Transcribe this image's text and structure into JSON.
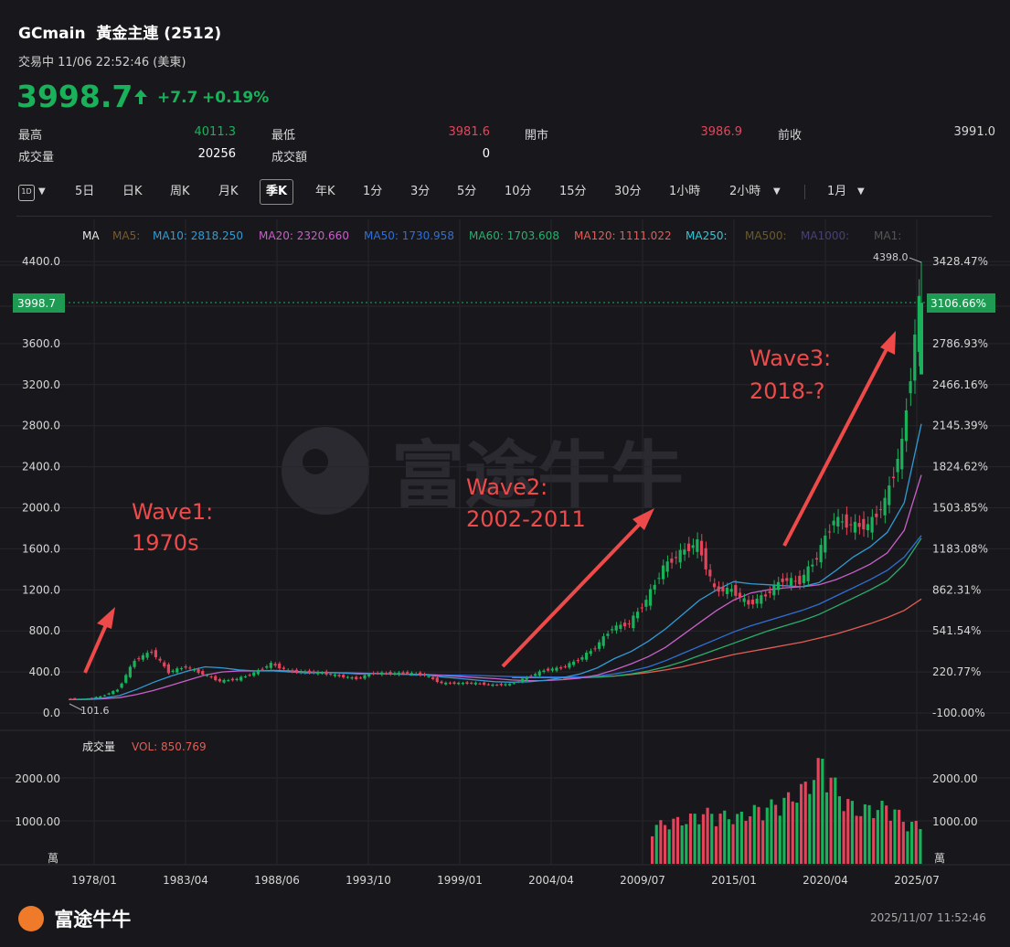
{
  "header": {
    "symbol": "GCmain",
    "name": "黃金主連 (2512)",
    "status": "交易中 11/06 22:52:46 (美東)",
    "price": "3998.7",
    "change": "+7.7",
    "change_pct": "+0.19%",
    "up_color": "#19b25a",
    "down_color": "#e2455b"
  },
  "stats": [
    {
      "label": "最高",
      "value": "4011.3",
      "color": "#19b25a"
    },
    {
      "label": "最低",
      "value": "3981.6",
      "color": "#e2455b"
    },
    {
      "label": "開市",
      "value": "3986.9",
      "color": "#e2455b"
    },
    {
      "label": "前收",
      "value": "3991.0",
      "color": "#d6d6d6"
    },
    {
      "label": "成交量",
      "value": "20256",
      "color": "#ffffff"
    },
    {
      "label": "成交額",
      "value": "0",
      "color": "#ffffff"
    }
  ],
  "toolbar": {
    "period_icon": "1D",
    "items": [
      "5日",
      "日K",
      "周K",
      "月K",
      "季K",
      "年K",
      "1分",
      "3分",
      "5分",
      "10分",
      "15分",
      "30分",
      "1小時",
      "2小時",
      "1月"
    ],
    "active": "季K"
  },
  "legend": {
    "ma_label": "MA",
    "items": [
      {
        "text": "MA5:",
        "color": "#7a5a2a"
      },
      {
        "text": "MA10: 2818.250",
        "color": "#2f9bd6"
      },
      {
        "text": "MA20: 2320.660",
        "color": "#c95fc9"
      },
      {
        "text": "MA50: 1730.958",
        "color": "#2f6fd6"
      },
      {
        "text": "MA60: 1703.608",
        "color": "#27b06a"
      },
      {
        "text": "MA120: 1111.022",
        "color": "#e35d55"
      },
      {
        "text": "MA250:",
        "color": "#2ec9d6"
      },
      {
        "text": "MA500:",
        "color": "#6a5a2a"
      },
      {
        "text": "MA1000:",
        "color": "#4a3f7a"
      },
      {
        "text": "MA1:",
        "color": "#555555"
      }
    ]
  },
  "current_price_tag": "3998.7",
  "current_pct_tag": "3106.66%",
  "max_label": "4398.0",
  "min_label": "101.6",
  "volume": {
    "label": "成交量",
    "vol_text": "VOL: 850.769",
    "unit": "萬"
  },
  "annotations": [
    {
      "line1": "Wave1:",
      "line2": "1970s"
    },
    {
      "line1": "Wave2:",
      "line2": "2002-2011"
    },
    {
      "line1": "Wave3:",
      "line2": "2018-?"
    }
  ],
  "watermark": "富途牛牛",
  "footer_brand": "富途牛牛",
  "footer_time": "2025/11/07 11:52:46",
  "chart_data": {
    "type": "candlestick",
    "title": "",
    "y_ticks": [
      "4400.0",
      "3600.0",
      "3200.0",
      "2800.0",
      "2400.0",
      "2000.0",
      "1600.0",
      "1200.0",
      "800.0",
      "400.0",
      "0.0"
    ],
    "pct_ticks": [
      "3428.47%",
      "2786.93%",
      "2466.16%",
      "2145.39%",
      "1824.62%",
      "1503.85%",
      "1183.08%",
      "862.31%",
      "541.54%",
      "220.77%",
      "-100.00%"
    ],
    "x_ticks": [
      "1978/01",
      "1983/04",
      "1988/06",
      "1993/10",
      "1999/01",
      "2004/04",
      "2009/07",
      "2015/01",
      "2020/04",
      "2025/07"
    ],
    "ylim": [
      0,
      4400
    ],
    "volume_ticks": [
      "2000.00",
      "1000.00"
    ],
    "price_x": [
      "1975",
      "1976",
      "1977",
      "1978",
      "1979",
      "1980",
      "1981",
      "1982",
      "1983",
      "1984",
      "1985",
      "1986",
      "1987",
      "1988",
      "1989",
      "1990",
      "1991",
      "1992",
      "1993",
      "1994",
      "1995",
      "1996",
      "1997",
      "1998",
      "1999",
      "2000",
      "2001",
      "2002",
      "2003",
      "2004",
      "2005",
      "2006",
      "2007",
      "2008",
      "2009",
      "2010",
      "2011",
      "2012",
      "2013",
      "2014",
      "2015",
      "2016",
      "2017",
      "2018",
      "2019",
      "2020",
      "2021",
      "2022",
      "2023",
      "2024",
      "2025"
    ],
    "price_close": [
      140,
      135,
      160,
      226,
      512,
      600,
      400,
      450,
      380,
      310,
      330,
      390,
      480,
      410,
      400,
      390,
      360,
      335,
      390,
      385,
      390,
      370,
      290,
      290,
      290,
      272,
      280,
      345,
      415,
      440,
      515,
      635,
      830,
      870,
      1100,
      1420,
      1560,
      1660,
      1200,
      1200,
      1060,
      1150,
      1300,
      1280,
      1520,
      1890,
      1830,
      1820,
      2060,
      2620,
      3998
    ],
    "ma10": [
      130,
      135,
      145,
      170,
      230,
      300,
      360,
      410,
      450,
      440,
      420,
      410,
      410,
      400,
      390,
      395,
      390,
      380,
      385,
      380,
      375,
      370,
      350,
      335,
      320,
      305,
      300,
      305,
      320,
      345,
      380,
      440,
      530,
      600,
      700,
      820,
      960,
      1100,
      1200,
      1280,
      1260,
      1250,
      1240,
      1230,
      1270,
      1390,
      1520,
      1620,
      1760,
      2050,
      2818
    ],
    "ma20": [
      130,
      132,
      138,
      150,
      180,
      220,
      270,
      320,
      370,
      400,
      410,
      410,
      415,
      410,
      400,
      395,
      392,
      388,
      385,
      380,
      378,
      375,
      365,
      355,
      345,
      335,
      322,
      315,
      316,
      325,
      340,
      370,
      420,
      480,
      550,
      640,
      760,
      880,
      1000,
      1100,
      1170,
      1200,
      1220,
      1230,
      1250,
      1300,
      1370,
      1450,
      1560,
      1780,
      2320
    ],
    "ma50": [
      null,
      null,
      null,
      null,
      null,
      null,
      null,
      null,
      null,
      null,
      null,
      null,
      null,
      null,
      null,
      null,
      null,
      null,
      null,
      null,
      370,
      372,
      370,
      368,
      365,
      360,
      355,
      352,
      350,
      350,
      352,
      360,
      380,
      410,
      450,
      510,
      580,
      650,
      720,
      790,
      850,
      900,
      950,
      1000,
      1060,
      1140,
      1220,
      1300,
      1390,
      1520,
      1730
    ],
    "ma60": [
      null,
      null,
      null,
      null,
      null,
      null,
      null,
      null,
      null,
      null,
      null,
      null,
      null,
      null,
      null,
      null,
      null,
      null,
      null,
      null,
      null,
      null,
      null,
      null,
      null,
      null,
      345,
      345,
      345,
      345,
      345,
      350,
      360,
      380,
      410,
      450,
      500,
      560,
      620,
      680,
      740,
      800,
      850,
      900,
      960,
      1040,
      1120,
      1200,
      1290,
      1450,
      1703
    ],
    "ma120": [
      null,
      null,
      null,
      null,
      null,
      null,
      null,
      null,
      null,
      null,
      null,
      null,
      null,
      null,
      null,
      null,
      null,
      null,
      null,
      null,
      null,
      null,
      null,
      null,
      null,
      null,
      null,
      null,
      null,
      340,
      345,
      350,
      360,
      375,
      395,
      420,
      450,
      490,
      530,
      570,
      600,
      630,
      660,
      690,
      730,
      770,
      820,
      870,
      930,
      1000,
      1111
    ],
    "volume_x": [
      "2010",
      "2011",
      "2012",
      "2013",
      "2014",
      "2015",
      "2016",
      "2017",
      "2018",
      "2019",
      "2020",
      "2021",
      "2022",
      "2023",
      "2024",
      "2025"
    ],
    "volume_values": [
      800,
      900,
      950,
      1100,
      1050,
      1000,
      1150,
      1250,
      1400,
      1650,
      2200,
      1500,
      1150,
      1200,
      1250,
      850
    ]
  }
}
